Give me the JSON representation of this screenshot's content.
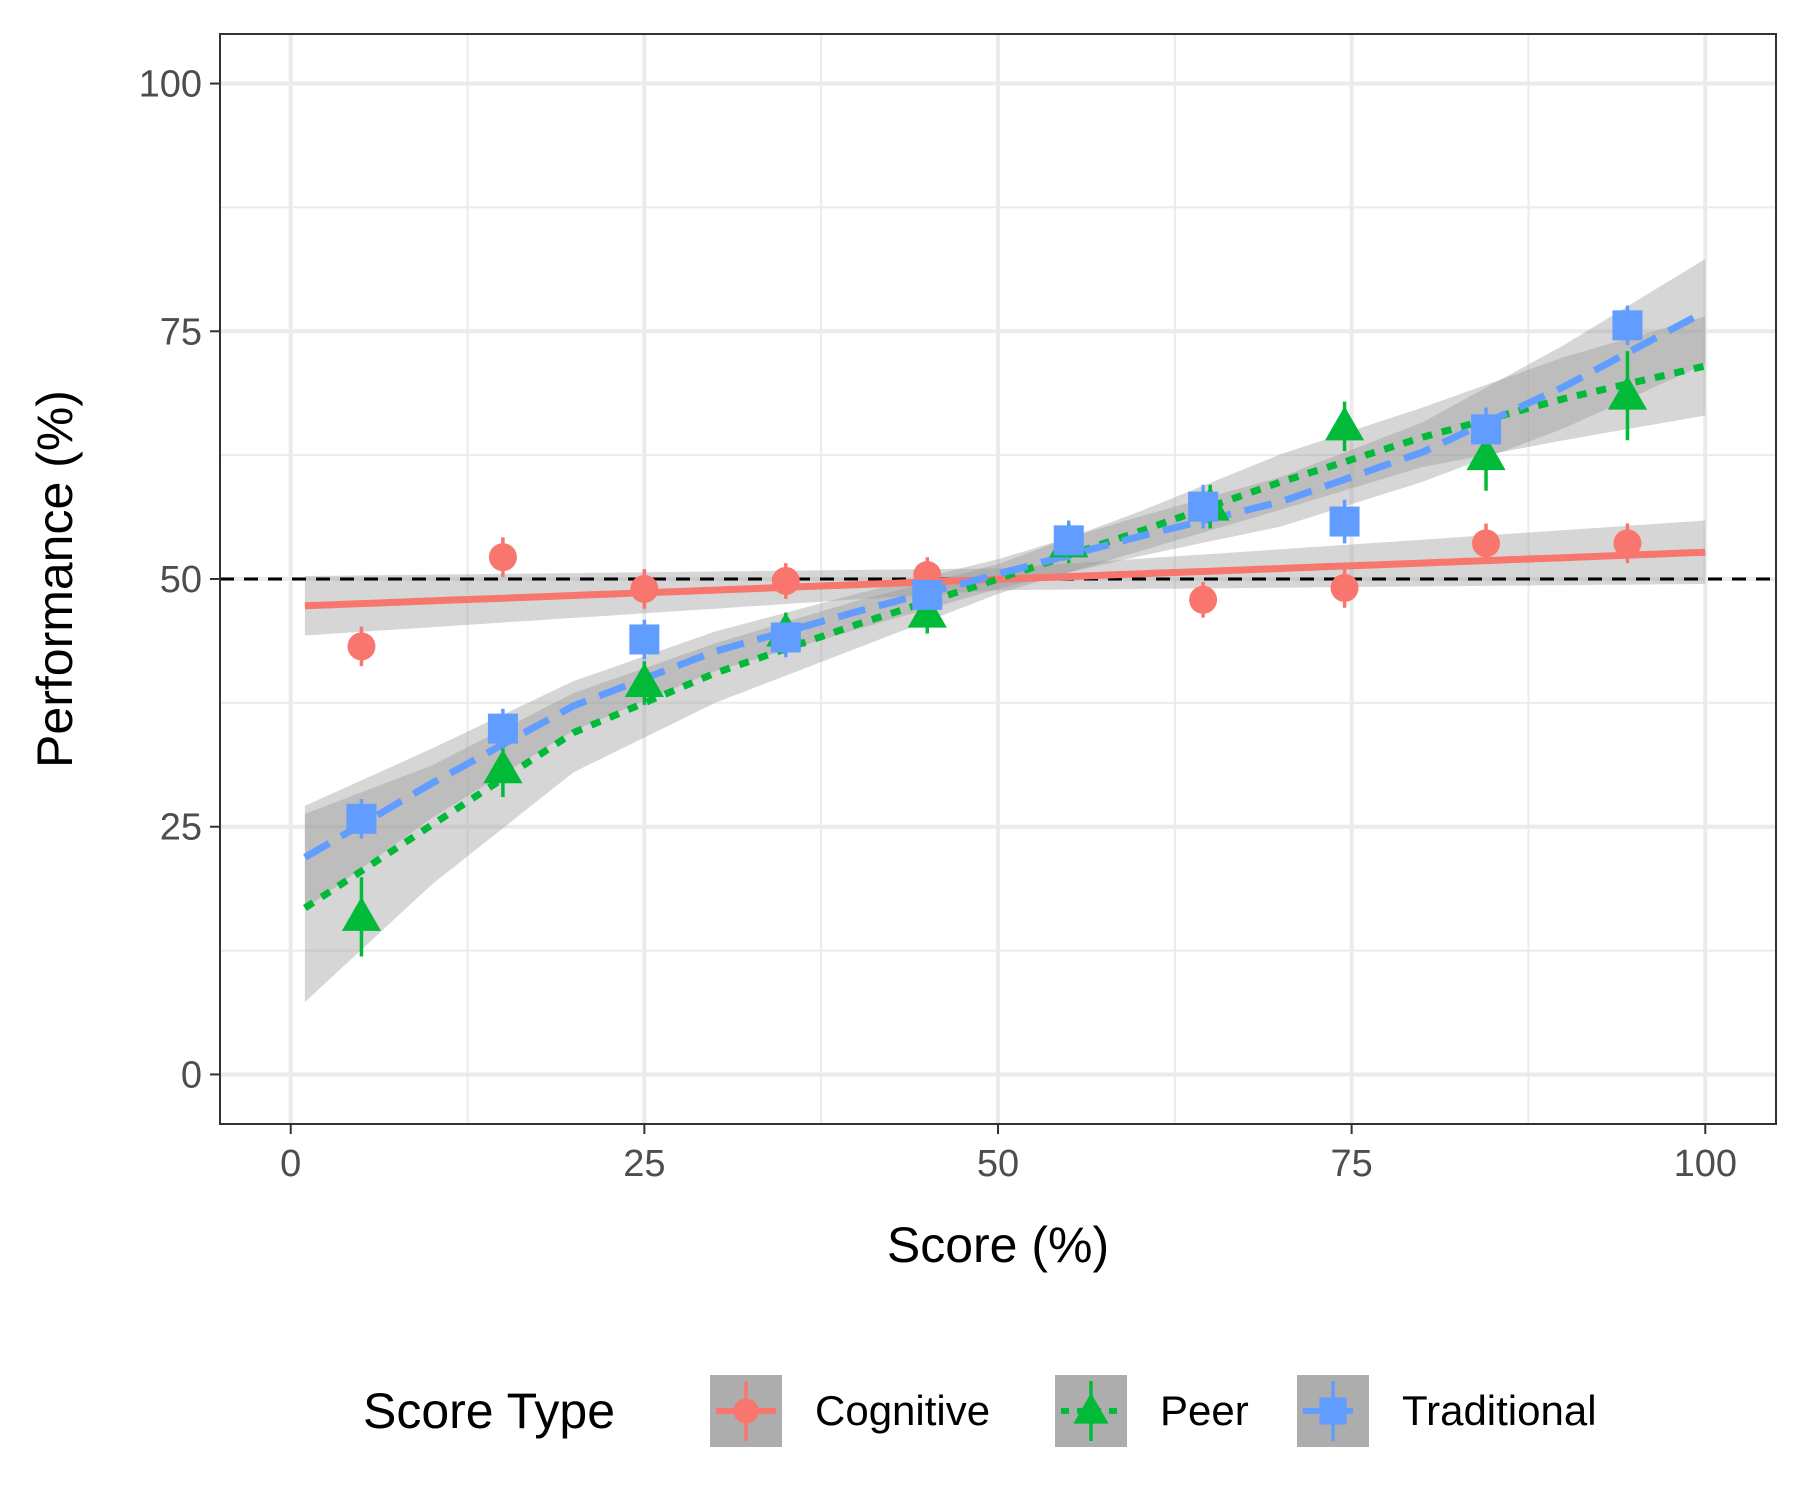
{
  "chart_data": {
    "type": "scatter",
    "xlabel": "Score (%)",
    "ylabel": "Performance (%)",
    "xlim": [
      -5,
      105
    ],
    "ylim": [
      -5,
      105
    ],
    "x_ticks": [
      "0",
      "25",
      "50",
      "75",
      "100"
    ],
    "y_ticks": [
      "0",
      "25",
      "50",
      "75",
      "100"
    ],
    "reference_line_y": 50,
    "grid": true,
    "legend": {
      "title": "Score Type",
      "placement": "bottom",
      "entries": [
        "Cognitive",
        "Peer",
        "Traditional"
      ]
    },
    "series": [
      {
        "name": "Cognitive",
        "color": "#F8766D",
        "marker": "circle",
        "line_style": "solid",
        "x": [
          5,
          15,
          25,
          35,
          45,
          64.5,
          74.5,
          84.5,
          94.5
        ],
        "y": [
          43.2,
          52.2,
          49.0,
          49.8,
          50.4,
          47.9,
          49.1,
          53.6,
          53.6
        ],
        "err": [
          2.0,
          2.0,
          2.0,
          1.8,
          1.8,
          1.8,
          2.0,
          2.0,
          2.0
        ],
        "fit": [
          [
            1,
            47.3
          ],
          [
            100,
            52.7
          ]
        ],
        "ci_halfwidth": [
          [
            1,
            3.0
          ],
          [
            50,
            1.1
          ],
          [
            100,
            3.2
          ]
        ]
      },
      {
        "name": "Peer",
        "color": "#00BA38",
        "marker": "triangle",
        "line_style": "dotted",
        "x": [
          5,
          15,
          25,
          35,
          45,
          55,
          65,
          74.5,
          84.5,
          94.5
        ],
        "y": [
          15.9,
          30.8,
          39.5,
          44.6,
          46.5,
          53.6,
          57.3,
          65.4,
          62.4,
          68.5
        ],
        "err": [
          4.0,
          2.8,
          2.2,
          2.0,
          2.0,
          2.0,
          2.2,
          2.5,
          3.5,
          4.5
        ],
        "fit": [
          [
            1,
            16.8
          ],
          [
            10,
            25.2
          ],
          [
            20,
            34.5
          ],
          [
            30,
            40.5
          ],
          [
            40,
            45.4
          ],
          [
            50,
            50.0
          ],
          [
            60,
            54.8
          ],
          [
            70,
            59.8
          ],
          [
            80,
            64.3
          ],
          [
            90,
            68.2
          ],
          [
            100,
            71.5
          ]
        ],
        "ci_halfwidth": [
          [
            1,
            9.5
          ],
          [
            10,
            6.0
          ],
          [
            20,
            4.0
          ],
          [
            30,
            3.0
          ],
          [
            40,
            2.4
          ],
          [
            50,
            1.5
          ],
          [
            60,
            2.0
          ],
          [
            70,
            2.8
          ],
          [
            80,
            3.0
          ],
          [
            90,
            4.2
          ],
          [
            100,
            5.0
          ]
        ]
      },
      {
        "name": "Traditional",
        "color": "#619CFF",
        "marker": "square",
        "line_style": "dashed",
        "x": [
          5,
          15,
          25,
          35,
          45,
          55,
          64.5,
          74.5,
          84.5,
          94.5
        ],
        "y": [
          25.8,
          34.9,
          43.9,
          44.1,
          48.4,
          53.9,
          57.3,
          55.8,
          65.1,
          75.6
        ],
        "err": [
          2.0,
          2.0,
          2.0,
          2.0,
          2.0,
          2.0,
          2.2,
          2.2,
          2.2,
          2.0
        ],
        "fit": [
          [
            1,
            21.9
          ],
          [
            10,
            29.4
          ],
          [
            20,
            37.2
          ],
          [
            30,
            42.7
          ],
          [
            40,
            46.7
          ],
          [
            50,
            50.5
          ],
          [
            60,
            54.3
          ],
          [
            70,
            57.8
          ],
          [
            80,
            62.8
          ],
          [
            90,
            69.4
          ],
          [
            100,
            77.0
          ]
        ],
        "ci_halfwidth": [
          [
            1,
            5.2
          ],
          [
            10,
            3.5
          ],
          [
            20,
            2.5
          ],
          [
            30,
            2.0
          ],
          [
            40,
            1.8
          ],
          [
            50,
            1.5
          ],
          [
            60,
            2.0
          ],
          [
            70,
            2.5
          ],
          [
            80,
            3.0
          ],
          [
            90,
            4.2
          ],
          [
            100,
            5.3
          ]
        ]
      }
    ]
  }
}
